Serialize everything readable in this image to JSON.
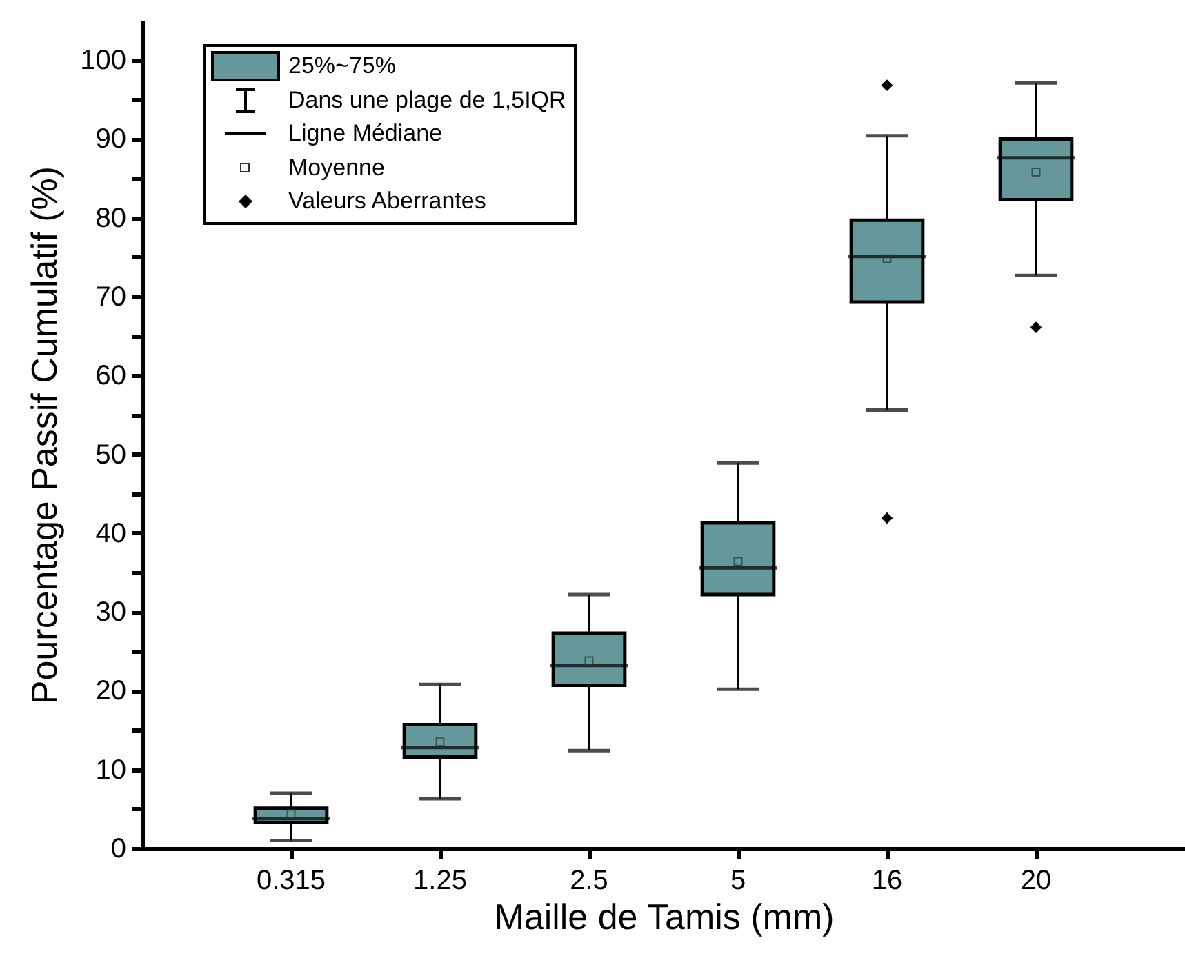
{
  "chart_data": {
    "type": "box",
    "xlabel": "Maille de Tamis (mm)",
    "ylabel": "Pourcentage Passif Cumulatif (%)",
    "categories": [
      "0.315",
      "1.25",
      "2.5",
      "5",
      "16",
      "20"
    ],
    "series": [
      {
        "name": "25%~75%",
        "color": "#64989a",
        "boxes": [
          {
            "low": 1.0,
            "q1": 3.3,
            "median": 3.8,
            "q3": 5.1,
            "high": 7.0,
            "mean": 4.4
          },
          {
            "low": 6.3,
            "q1": 11.6,
            "median": 12.8,
            "q3": 15.7,
            "high": 20.8,
            "mean": 13.5
          },
          {
            "low": 12.4,
            "q1": 20.7,
            "median": 23.2,
            "q3": 27.3,
            "high": 32.2,
            "mean": 23.8
          },
          {
            "low": 20.2,
            "q1": 32.2,
            "median": 35.6,
            "q3": 41.3,
            "high": 48.9,
            "mean": 36.4
          },
          {
            "low": 55.6,
            "q1": 69.3,
            "median": 75.1,
            "q3": 79.7,
            "high": 90.4,
            "mean": 74.8,
            "outliers": [
              96.8,
              41.9
            ]
          },
          {
            "low": 72.7,
            "q1": 82.3,
            "median": 87.6,
            "q3": 90.0,
            "high": 97.1,
            "mean": 85.8,
            "outliers": [
              66.1
            ]
          }
        ]
      }
    ],
    "ylim": [
      0,
      105
    ],
    "yticks": [
      0,
      {
        "value": 5,
        "label": null
      },
      10,
      {
        "value": 15,
        "label": null
      },
      20,
      {
        "value": 25,
        "label": null
      },
      30,
      {
        "value": 35,
        "label": null
      },
      40,
      {
        "value": 45,
        "label": null
      },
      50,
      {
        "value": 55,
        "label": null
      },
      60,
      {
        "value": 65,
        "label": null
      },
      70,
      {
        "value": 75,
        "label": null
      },
      80,
      {
        "value": 85,
        "label": null
      },
      90,
      {
        "value": 95,
        "label": null
      },
      100
    ],
    "legend": "top left",
    "annotations": [
      "Dans une plage de 1,5IQR",
      "Ligne Médiane",
      "Moyenne",
      "Valeurs Aberrantes"
    ]
  }
}
